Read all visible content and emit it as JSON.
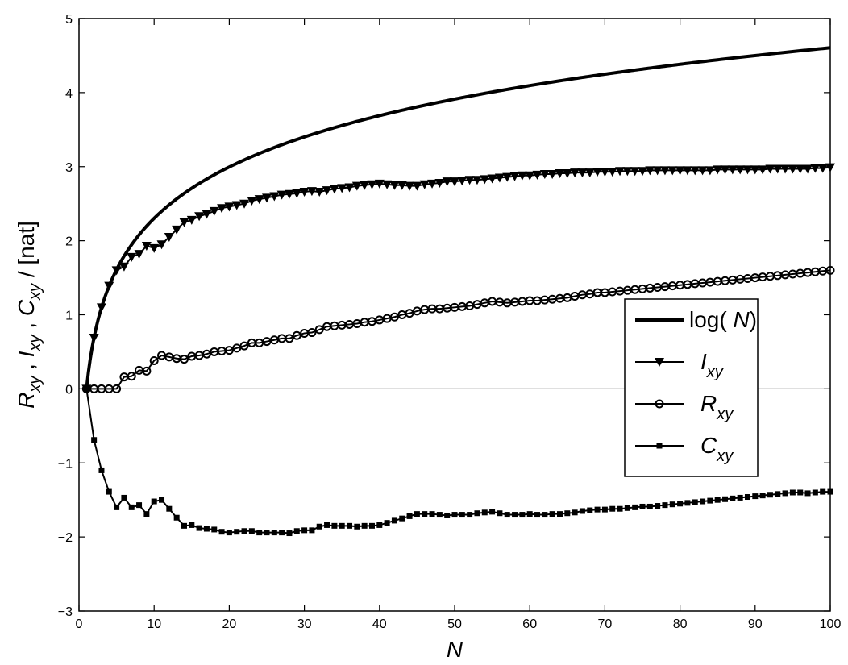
{
  "chart_data": {
    "type": "line",
    "xlabel": "N",
    "ylabel": {
      "parts": [
        {
          "main": "R",
          "sub": "xy"
        },
        {
          "main": "I",
          "sub": "xy"
        },
        {
          "main": "C",
          "sub": "xy"
        }
      ],
      "separator": ",",
      "unit_sep": "/",
      "unit": "[nat]"
    },
    "xlim": [
      0,
      100
    ],
    "ylim": [
      -3,
      5
    ],
    "xticks": [
      0,
      10,
      20,
      30,
      40,
      50,
      60,
      70,
      80,
      90,
      100
    ],
    "yticks": [
      -3,
      -2,
      -1,
      0,
      1,
      2,
      3,
      4,
      5
    ],
    "grid": false,
    "legend_position": "right",
    "reference_line_y": 0,
    "series": [
      {
        "name": "log( N)",
        "name_parts": {
          "pre": "log( ",
          "var": "N",
          "post": ")"
        },
        "marker": "none",
        "line_width": "thick",
        "function": "ln",
        "x_range": [
          1,
          100
        ]
      },
      {
        "name": "I_xy",
        "name_parts": {
          "main": "I",
          "sub": "xy"
        },
        "marker": "triangle-down",
        "x_start": 1,
        "values": [
          0,
          0.69,
          1.1,
          1.39,
          1.6,
          1.65,
          1.78,
          1.82,
          1.93,
          1.9,
          1.95,
          2.05,
          2.15,
          2.25,
          2.28,
          2.33,
          2.36,
          2.4,
          2.44,
          2.46,
          2.48,
          2.5,
          2.54,
          2.56,
          2.58,
          2.6,
          2.62,
          2.63,
          2.64,
          2.66,
          2.67,
          2.66,
          2.68,
          2.7,
          2.71,
          2.72,
          2.74,
          2.75,
          2.76,
          2.77,
          2.76,
          2.75,
          2.75,
          2.74,
          2.74,
          2.76,
          2.77,
          2.78,
          2.8,
          2.8,
          2.81,
          2.82,
          2.82,
          2.83,
          2.84,
          2.85,
          2.86,
          2.87,
          2.88,
          2.88,
          2.89,
          2.9,
          2.9,
          2.91,
          2.91,
          2.92,
          2.92,
          2.92,
          2.93,
          2.93,
          2.93,
          2.94,
          2.94,
          2.94,
          2.94,
          2.95,
          2.95,
          2.95,
          2.95,
          2.95,
          2.95,
          2.95,
          2.95,
          2.95,
          2.96,
          2.96,
          2.96,
          2.96,
          2.96,
          2.96,
          2.96,
          2.97,
          2.97,
          2.97,
          2.97,
          2.97,
          2.97,
          2.98,
          2.98,
          2.99
        ]
      },
      {
        "name": "R_xy",
        "name_parts": {
          "main": "R",
          "sub": "xy"
        },
        "marker": "circle",
        "x_start": 1,
        "values": [
          0,
          0.0,
          0.0,
          0.0,
          0.0,
          0.16,
          0.17,
          0.25,
          0.24,
          0.38,
          0.45,
          0.43,
          0.41,
          0.4,
          0.44,
          0.45,
          0.47,
          0.5,
          0.51,
          0.52,
          0.55,
          0.58,
          0.62,
          0.62,
          0.64,
          0.66,
          0.68,
          0.68,
          0.72,
          0.75,
          0.76,
          0.8,
          0.84,
          0.85,
          0.86,
          0.87,
          0.88,
          0.9,
          0.91,
          0.93,
          0.95,
          0.97,
          1.0,
          1.02,
          1.05,
          1.07,
          1.08,
          1.08,
          1.09,
          1.1,
          1.11,
          1.12,
          1.14,
          1.16,
          1.18,
          1.17,
          1.16,
          1.17,
          1.18,
          1.19,
          1.19,
          1.2,
          1.21,
          1.22,
          1.23,
          1.25,
          1.27,
          1.28,
          1.3,
          1.3,
          1.31,
          1.32,
          1.33,
          1.34,
          1.35,
          1.36,
          1.37,
          1.38,
          1.39,
          1.4,
          1.41,
          1.42,
          1.43,
          1.44,
          1.45,
          1.46,
          1.47,
          1.48,
          1.49,
          1.5,
          1.51,
          1.52,
          1.53,
          1.54,
          1.55,
          1.56,
          1.57,
          1.58,
          1.59,
          1.6
        ]
      },
      {
        "name": "C_xy",
        "name_parts": {
          "main": "C",
          "sub": "xy"
        },
        "marker": "square",
        "x_start": 1,
        "values": [
          0,
          -0.69,
          -1.1,
          -1.39,
          -1.6,
          -1.47,
          -1.6,
          -1.57,
          -1.69,
          -1.52,
          -1.5,
          -1.62,
          -1.74,
          -1.85,
          -1.84,
          -1.88,
          -1.89,
          -1.9,
          -1.93,
          -1.94,
          -1.93,
          -1.92,
          -1.92,
          -1.94,
          -1.94,
          -1.94,
          -1.94,
          -1.95,
          -1.92,
          -1.91,
          -1.91,
          -1.86,
          -1.84,
          -1.85,
          -1.85,
          -1.85,
          -1.86,
          -1.85,
          -1.85,
          -1.84,
          -1.81,
          -1.78,
          -1.75,
          -1.72,
          -1.69,
          -1.69,
          -1.69,
          -1.7,
          -1.71,
          -1.7,
          -1.7,
          -1.7,
          -1.68,
          -1.67,
          -1.66,
          -1.68,
          -1.7,
          -1.7,
          -1.7,
          -1.69,
          -1.7,
          -1.7,
          -1.69,
          -1.69,
          -1.68,
          -1.67,
          -1.65,
          -1.64,
          -1.63,
          -1.63,
          -1.62,
          -1.62,
          -1.61,
          -1.6,
          -1.59,
          -1.59,
          -1.58,
          -1.57,
          -1.56,
          -1.55,
          -1.54,
          -1.53,
          -1.52,
          -1.51,
          -1.5,
          -1.49,
          -1.48,
          -1.47,
          -1.46,
          -1.45,
          -1.44,
          -1.43,
          -1.42,
          -1.41,
          -1.4,
          -1.4,
          -1.41,
          -1.4,
          -1.39,
          -1.39
        ]
      }
    ]
  }
}
